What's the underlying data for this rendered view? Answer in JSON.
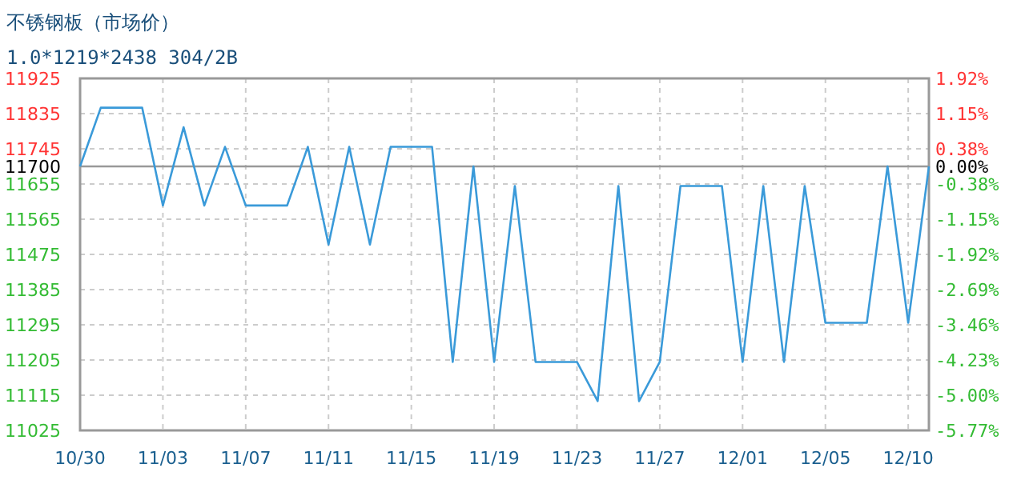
{
  "chart_data": {
    "type": "line",
    "title": "不锈钢板（市场价）",
    "subtitle": "1.0*1219*2438 304/2B",
    "categories": [
      "10/30",
      null,
      null,
      null,
      "11/03",
      null,
      null,
      null,
      "11/07",
      null,
      null,
      null,
      "11/11",
      null,
      null,
      null,
      "11/15",
      null,
      null,
      null,
      "11/19",
      null,
      null,
      null,
      "11/23",
      null,
      null,
      null,
      "11/27",
      null,
      null,
      null,
      "12/01",
      null,
      null,
      null,
      "12/05",
      null,
      null,
      null,
      "12/10",
      null
    ],
    "series": [
      {
        "color": "#3a9ad9",
        "values": [
          11700,
          11850,
          11850,
          11850,
          11600,
          11800,
          11600,
          11750,
          11600,
          11600,
          11600,
          11750,
          11500,
          11750,
          11500,
          11750,
          11750,
          11750,
          11200,
          11700,
          11200,
          11650,
          11200,
          11200,
          11200,
          11100,
          11650,
          11100,
          11200,
          11650,
          11650,
          11650,
          11200,
          11650,
          11200,
          11650,
          11300,
          11300,
          11300,
          11700,
          11300,
          11700
        ]
      }
    ],
    "ylim": [
      11025,
      11925
    ],
    "yticks": [
      11025,
      11115,
      11205,
      11295,
      11385,
      11475,
      11565,
      11655,
      11700,
      11745,
      11835,
      11925
    ],
    "y2lim": [
      -5.77,
      1.92
    ],
    "y2ticks": [
      {
        "value": -5.77,
        "label": "-5.77%"
      },
      {
        "value": -5.0,
        "label": "-5.00%"
      },
      {
        "value": -4.23,
        "label": "-4.23%"
      },
      {
        "value": -3.46,
        "label": "-3.46%"
      },
      {
        "value": -2.69,
        "label": "-2.69%"
      },
      {
        "value": -1.92,
        "label": "-1.92%"
      },
      {
        "value": -1.15,
        "label": "-1.15%"
      },
      {
        "value": -0.38,
        "label": "-0.38%"
      },
      {
        "value": 0,
        "label": "0.00%"
      },
      {
        "value": 0.38,
        "label": "0.38%"
      },
      {
        "value": 1.15,
        "label": "1.15%"
      },
      {
        "value": 1.92,
        "label": "1.92%"
      }
    ],
    "ref_lines": [
      {
        "axis": "y",
        "value": 11700,
        "color": "#999999"
      }
    ],
    "grid": true
  }
}
